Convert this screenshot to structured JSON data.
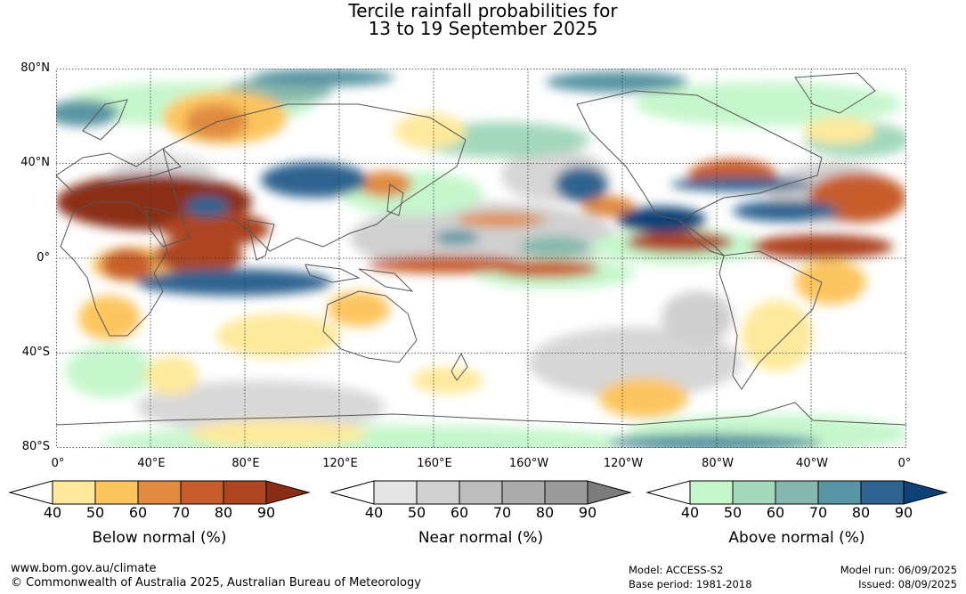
{
  "title": {
    "line1": "Tercile rainfall probabilities for",
    "line2": "13 to 19 September 2025"
  },
  "map": {
    "lat_labels": [
      "80°N",
      "40°N",
      "0°",
      "40°S",
      "80°S"
    ],
    "lon_labels": [
      "0°",
      "40°E",
      "80°E",
      "120°E",
      "160°E",
      "160°W",
      "120°W",
      "80°W",
      "40°W",
      "0°"
    ],
    "grid": "dotted"
  },
  "legends": [
    {
      "label": "Below normal (%)",
      "ticks": [
        "40",
        "50",
        "60",
        "70",
        "80",
        "90"
      ],
      "colors": [
        "#ffffff",
        "#fee99c",
        "#fdc55e",
        "#e08b40",
        "#c75d2c",
        "#ad4520",
        "#8b2d14"
      ]
    },
    {
      "label": "Near normal (%)",
      "ticks": [
        "40",
        "50",
        "60",
        "70",
        "80",
        "90"
      ],
      "colors": [
        "#ffffff",
        "#e5e5e5",
        "#d0d0d0",
        "#bdbdbd",
        "#acacac",
        "#9a9a9a",
        "#7d7d7d"
      ]
    },
    {
      "label": "Above normal (%)",
      "ticks": [
        "40",
        "50",
        "60",
        "70",
        "80",
        "90"
      ],
      "colors": [
        "#ffffff",
        "#c6f7cc",
        "#a3d8bc",
        "#88b8ad",
        "#5894a3",
        "#2f6390",
        "#0d4277"
      ]
    }
  ],
  "footer": {
    "website": "www.bom.gov.au/climate",
    "copyright": "© Commonwealth of Australia 2025, Australian Bureau of Meteorology",
    "model": "Model: ACCESS-S2",
    "base_period": "Base period: 1981-2018",
    "model_run": "Model run: 06/09/2025",
    "issued": "Issued: 08/09/2025"
  }
}
